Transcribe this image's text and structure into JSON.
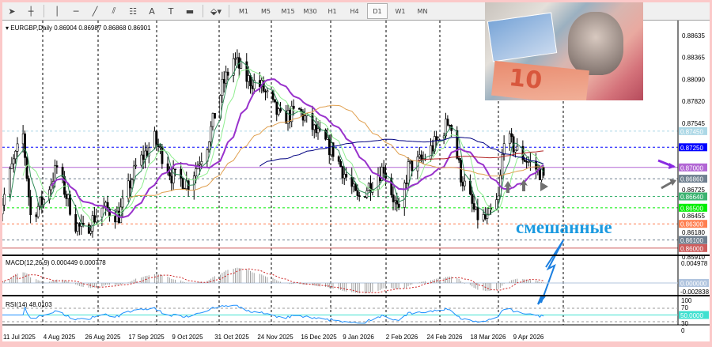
{
  "toolbar": {
    "tools": [
      {
        "name": "cursor-icon",
        "glyph": "➤"
      },
      {
        "name": "crosshair-icon",
        "glyph": "┼"
      },
      {
        "name": "vertical-line-icon",
        "glyph": "│"
      },
      {
        "name": "horizontal-line-icon",
        "glyph": "─"
      },
      {
        "name": "trendline-icon",
        "glyph": "╱"
      },
      {
        "name": "fibonacci-channel-icon",
        "glyph": "⫽"
      },
      {
        "name": "fibonacci-grid-icon",
        "glyph": "☷"
      },
      {
        "name": "text-icon",
        "glyph": "A"
      },
      {
        "name": "text-label-icon",
        "glyph": "T"
      },
      {
        "name": "rectangle-icon",
        "glyph": "▬"
      },
      {
        "name": "more-shapes-icon",
        "glyph": "⬙▾"
      }
    ],
    "timeframes": [
      "M1",
      "M5",
      "M15",
      "M30",
      "H1",
      "H4",
      "D1",
      "W1",
      "MN"
    ],
    "active_timeframe": "D1"
  },
  "chart": {
    "symbol_info": "EURGBP,Daily  0.86904 0.86987 0.86868 0.86901",
    "annotation": "смешанные",
    "price_ticks": [
      "0.88635",
      "0.88365",
      "0.88090",
      "0.87820",
      "0.87545",
      "0.86725",
      "0.86455",
      "0.86180",
      "0.85910"
    ],
    "levels": [
      {
        "price": "0.87450",
        "color": "#add8e6",
        "style": "dashed"
      },
      {
        "price": "0.87250",
        "color": "#0000ff",
        "style": "dashed"
      },
      {
        "price": "0.87000",
        "color": "#b266d4",
        "style": "solid"
      },
      {
        "price": "0.86860",
        "color": "#708090",
        "style": "dashed"
      },
      {
        "price": "0.86640",
        "color": "#3cb371",
        "style": "dashed"
      },
      {
        "price": "0.86500",
        "color": "#00ee00",
        "style": "dashed"
      },
      {
        "price": "0.86300",
        "color": "#ff7f50",
        "style": "dashed"
      },
      {
        "price": "0.86100",
        "color": "#708090",
        "style": "dashed"
      },
      {
        "price": "0.86000",
        "color": "#cd5c5c",
        "style": "solid"
      }
    ],
    "current_price": "0.86901",
    "date_labels": [
      "11 Jul 2025",
      "4 Aug 2025",
      "26 Aug 2025",
      "17 Sep 2025",
      "9 Oct 2025",
      "31 Oct 2025",
      "24 Nov 2025",
      "16 Dec 2025",
      "9 Jan 2026",
      "2 Feb 2026",
      "24 Feb 2026",
      "18 Mar 2026",
      "9 Apr 2026"
    ],
    "ma_colors": [
      "#2e8b57",
      "#90ee90",
      "#9932cc",
      "#e0a050",
      "#000080",
      "#b22222"
    ]
  },
  "macd": {
    "label": "MACD(12,26,9) 0.000449 0.000778",
    "ticks": [
      "0.004978",
      "0.000000",
      "-0.002838"
    ]
  },
  "rsi": {
    "label": "RSI(14) 48.0103",
    "ticks": [
      "100",
      "70",
      "50.0000",
      "30",
      "0"
    ]
  },
  "chart_data": {
    "type": "candlestick",
    "symbol": "EURGBP",
    "timeframe": "Daily",
    "approx_closes": [
      [
        "2025-07-01",
        0.864
      ],
      [
        "2025-07-08",
        0.87
      ],
      [
        "2025-07-14",
        0.874
      ],
      [
        "2025-07-18",
        0.864
      ],
      [
        "2025-07-25",
        0.866
      ],
      [
        "2025-08-01",
        0.87
      ],
      [
        "2025-08-11",
        0.863
      ],
      [
        "2025-08-15",
        0.862
      ],
      [
        "2025-08-25",
        0.865
      ],
      [
        "2025-09-03",
        0.864
      ],
      [
        "2025-09-12",
        0.87
      ],
      [
        "2025-09-22",
        0.8735
      ],
      [
        "2025-10-01",
        0.869
      ],
      [
        "2025-10-10",
        0.868
      ],
      [
        "2025-10-20",
        0.873
      ],
      [
        "2025-10-28",
        0.88
      ],
      [
        "2025-11-03",
        0.8835
      ],
      [
        "2025-11-10",
        0.881
      ],
      [
        "2025-11-18",
        0.88
      ],
      [
        "2025-11-28",
        0.876
      ],
      [
        "2025-12-08",
        0.877
      ],
      [
        "2025-12-18",
        0.874
      ],
      [
        "2025-12-26",
        0.872
      ],
      [
        "2026-01-08",
        0.866
      ],
      [
        "2026-01-15",
        0.868
      ],
      [
        "2026-01-22",
        0.87
      ],
      [
        "2026-01-30",
        0.864
      ],
      [
        "2026-02-04",
        0.87
      ],
      [
        "2026-02-12",
        0.871
      ],
      [
        "2026-02-20",
        0.8735
      ],
      [
        "2026-02-26",
        0.876
      ],
      [
        "2026-03-04",
        0.869
      ],
      [
        "2026-03-12",
        0.864
      ],
      [
        "2026-03-18",
        0.8635
      ],
      [
        "2026-03-24",
        0.866
      ],
      [
        "2026-03-27",
        0.874
      ],
      [
        "2026-04-03",
        0.872
      ],
      [
        "2026-04-10",
        0.8705
      ],
      [
        "2026-04-17",
        0.86901
      ]
    ]
  }
}
